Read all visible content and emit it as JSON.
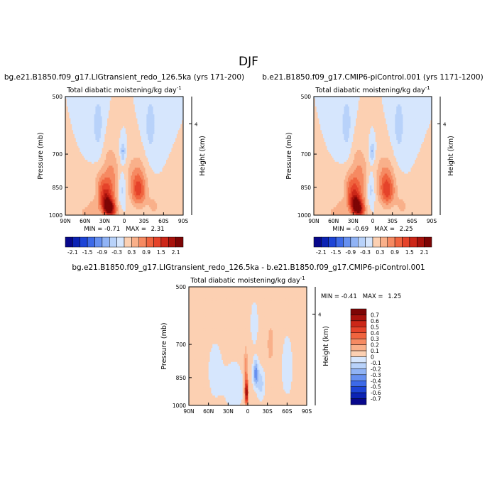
{
  "page_title": "DJF",
  "colors": {
    "neg": [
      "#08088c",
      "#0c23b4",
      "#1d44d6",
      "#3d6ae8",
      "#6690f0",
      "#90b3f5",
      "#b8d2fa",
      "#d6e6fd"
    ],
    "pos": [
      "#fde8d6",
      "#fcd0b2",
      "#f9b08a",
      "#f68a62",
      "#f0643f",
      "#e5432a",
      "#cc2718",
      "#a8120c",
      "#7d0505"
    ]
  },
  "chart_data": [
    {
      "type": "heatmap",
      "id": "left",
      "header": "bg.e21.B1850.f09_g17.LIGtransient_redo_126.5ka (yrs 171-200)",
      "title": "Total diabatic moistening/kg day",
      "title_sup": "-1",
      "ylabel": "Pressure  (mb)",
      "ylabel_right": "Height  (km)",
      "xticks": [
        "90N",
        "60N",
        "30N",
        "0",
        "30S",
        "60S",
        "90S"
      ],
      "yticks": [
        "500",
        "700",
        "850",
        "1000"
      ],
      "yticks_right": [
        "4"
      ],
      "xlim": [
        90,
        -90
      ],
      "ylim": [
        1000,
        500
      ],
      "stats": {
        "min_label": "MIN = ",
        "min": "-0.71",
        "max_label": "MAX = ",
        "max": "2.31"
      },
      "colorbar_labels": [
        "-2.1",
        "-1.5",
        "-0.9",
        "-0.3",
        "0.3",
        "0.9",
        "1.5",
        "2.1"
      ],
      "contour_levels": [
        -2.1,
        -1.8,
        -1.5,
        -1.2,
        -0.9,
        -0.6,
        -0.3,
        0,
        0.3,
        0.6,
        0.9,
        1.2,
        1.5,
        1.8,
        2.1
      ],
      "features": [
        {
          "lat": 22,
          "p": 960,
          "value": 2.2,
          "dlat": 10,
          "dp": 55,
          "tilt": 0.8
        },
        {
          "lat": 24,
          "p": 880,
          "value": 1.4,
          "dlat": 12,
          "dp": 90,
          "tilt": 0.8
        },
        {
          "lat": 12,
          "p": 780,
          "value": 0.6,
          "dlat": 12,
          "dp": 120,
          "tilt": 0.6
        },
        {
          "lat": -22,
          "p": 870,
          "value": 1.2,
          "dlat": 12,
          "dp": 80,
          "tilt": 0
        },
        {
          "lat": -18,
          "p": 780,
          "value": 0.5,
          "dlat": 14,
          "dp": 90,
          "tilt": 0
        },
        {
          "lat": 48,
          "p": 970,
          "value": 0.5,
          "dlat": 10,
          "dp": 60,
          "tilt": 0
        },
        {
          "lat": 62,
          "p": 985,
          "value": 0.3,
          "dlat": 8,
          "dp": 40,
          "tilt": 0
        },
        {
          "lat": -45,
          "p": 950,
          "value": 0.35,
          "dlat": 10,
          "dp": 70,
          "tilt": 0
        },
        {
          "lat": -65,
          "p": 960,
          "value": 0.2,
          "dlat": 10,
          "dp": 80,
          "tilt": 0
        },
        {
          "lat": 2,
          "p": 690,
          "value": -0.7,
          "dlat": 4,
          "dp": 40,
          "tilt": 0
        },
        {
          "lat": 4,
          "p": 860,
          "value": -0.5,
          "dlat": 6,
          "dp": 80,
          "tilt": 0
        },
        {
          "lat": 40,
          "p": 590,
          "value": -0.45,
          "dlat": 9,
          "dp": 110,
          "tilt": 0
        },
        {
          "lat": -40,
          "p": 590,
          "value": -0.45,
          "dlat": 9,
          "dp": 110,
          "tilt": 0
        }
      ]
    },
    {
      "type": "heatmap",
      "id": "right",
      "header": "b.e21.B1850.f09_g17.CMIP6-piControl.001 (yrs 1171-1200)",
      "title": "Total diabatic moistening/kg day",
      "title_sup": "-1",
      "ylabel": "Pressure  (mb)",
      "ylabel_right": "Height  (km)",
      "xticks": [
        "90N",
        "60N",
        "30N",
        "0",
        "30S",
        "60S",
        "90S"
      ],
      "yticks": [
        "500",
        "700",
        "850",
        "1000"
      ],
      "yticks_right": [
        "4"
      ],
      "xlim": [
        90,
        -90
      ],
      "ylim": [
        1000,
        500
      ],
      "stats": {
        "min_label": "MIN = ",
        "min": "-0.69",
        "max_label": "MAX = ",
        "max": "2.25"
      },
      "colorbar_labels": [
        "-2.1",
        "-1.5",
        "-0.9",
        "-0.3",
        "0.3",
        "0.9",
        "1.5",
        "2.1"
      ],
      "contour_levels": [
        -2.1,
        -1.8,
        -1.5,
        -1.2,
        -0.9,
        -0.6,
        -0.3,
        0,
        0.3,
        0.6,
        0.9,
        1.2,
        1.5,
        1.8,
        2.1
      ],
      "features": [
        {
          "lat": 22,
          "p": 960,
          "value": 2.15,
          "dlat": 10,
          "dp": 55,
          "tilt": 0.8
        },
        {
          "lat": 24,
          "p": 880,
          "value": 1.35,
          "dlat": 12,
          "dp": 90,
          "tilt": 0.8
        },
        {
          "lat": 12,
          "p": 780,
          "value": 0.6,
          "dlat": 12,
          "dp": 120,
          "tilt": 0.6
        },
        {
          "lat": -22,
          "p": 870,
          "value": 1.25,
          "dlat": 12,
          "dp": 80,
          "tilt": 0
        },
        {
          "lat": -18,
          "p": 780,
          "value": 0.5,
          "dlat": 14,
          "dp": 90,
          "tilt": 0
        },
        {
          "lat": 48,
          "p": 970,
          "value": 0.5,
          "dlat": 10,
          "dp": 60,
          "tilt": 0
        },
        {
          "lat": 62,
          "p": 985,
          "value": 0.3,
          "dlat": 8,
          "dp": 40,
          "tilt": 0
        },
        {
          "lat": -45,
          "p": 950,
          "value": 0.35,
          "dlat": 10,
          "dp": 70,
          "tilt": 0
        },
        {
          "lat": -65,
          "p": 960,
          "value": 0.2,
          "dlat": 10,
          "dp": 80,
          "tilt": 0
        },
        {
          "lat": 1,
          "p": 690,
          "value": -0.65,
          "dlat": 4,
          "dp": 40,
          "tilt": 0
        },
        {
          "lat": 3,
          "p": 860,
          "value": -0.5,
          "dlat": 6,
          "dp": 80,
          "tilt": 0
        },
        {
          "lat": 40,
          "p": 590,
          "value": -0.45,
          "dlat": 9,
          "dp": 110,
          "tilt": 0
        },
        {
          "lat": -40,
          "p": 590,
          "value": -0.45,
          "dlat": 9,
          "dp": 110,
          "tilt": 0
        }
      ]
    },
    {
      "type": "heatmap",
      "id": "diff",
      "header": "bg.e21.B1850.f09_g17.LIGtransient_redo_126.5ka - b.e21.B1850.f09_g17.CMIP6-piControl.001",
      "title": "Total diabatic moistening/kg day",
      "title_sup": "-1",
      "ylabel": "Pressure  (mb)",
      "ylabel_right": "Height  (km)",
      "xticks": [
        "90N",
        "60N",
        "30N",
        "0",
        "30S",
        "60S",
        "90S"
      ],
      "yticks": [
        "500",
        "700",
        "850",
        "1000"
      ],
      "yticks_right": [
        "4"
      ],
      "xlim": [
        90,
        -90
      ],
      "ylim": [
        1000,
        500
      ],
      "stats": {
        "min_label": "MIN = ",
        "min": "-0.41",
        "max_label": "MAX = ",
        "max": "1.25"
      },
      "colorbar_labels": [
        "0.7",
        "0.6",
        "0.5",
        "0.4",
        "0.3",
        "0.2",
        "0.1",
        "0",
        "-0.1",
        "-0.2",
        "-0.3",
        "-0.4",
        "-0.5",
        "-0.6",
        "-0.7"
      ],
      "contour_levels": [
        -0.7,
        -0.6,
        -0.5,
        -0.4,
        -0.3,
        -0.2,
        -0.1,
        0,
        0.1,
        0.2,
        0.3,
        0.4,
        0.5,
        0.6,
        0.7
      ],
      "background": 0.05,
      "features": [
        {
          "lat": 2,
          "p": 930,
          "value": 0.7,
          "dlat": 2.5,
          "dp": 60,
          "tilt": 0
        },
        {
          "lat": 3,
          "p": 820,
          "value": 0.25,
          "dlat": 2.5,
          "dp": 90,
          "tilt": 0
        },
        {
          "lat": -12,
          "p": 830,
          "value": -0.4,
          "dlat": 4,
          "dp": 60,
          "tilt": 0
        },
        {
          "lat": -20,
          "p": 880,
          "value": -0.2,
          "dlat": 6,
          "dp": 80,
          "tilt": 0
        },
        {
          "lat": 20,
          "p": 900,
          "value": -0.1,
          "dlat": 16,
          "dp": 150,
          "tilt": 0
        },
        {
          "lat": 50,
          "p": 820,
          "value": -0.08,
          "dlat": 14,
          "dp": 180,
          "tilt": 0
        },
        {
          "lat": -60,
          "p": 800,
          "value": -0.08,
          "dlat": 12,
          "dp": 200,
          "tilt": 0
        },
        {
          "lat": -10,
          "p": 620,
          "value": -0.12,
          "dlat": 6,
          "dp": 80,
          "tilt": 0
        },
        {
          "lat": -35,
          "p": 700,
          "value": 0.06,
          "dlat": 10,
          "dp": 150,
          "tilt": 0
        }
      ]
    }
  ]
}
